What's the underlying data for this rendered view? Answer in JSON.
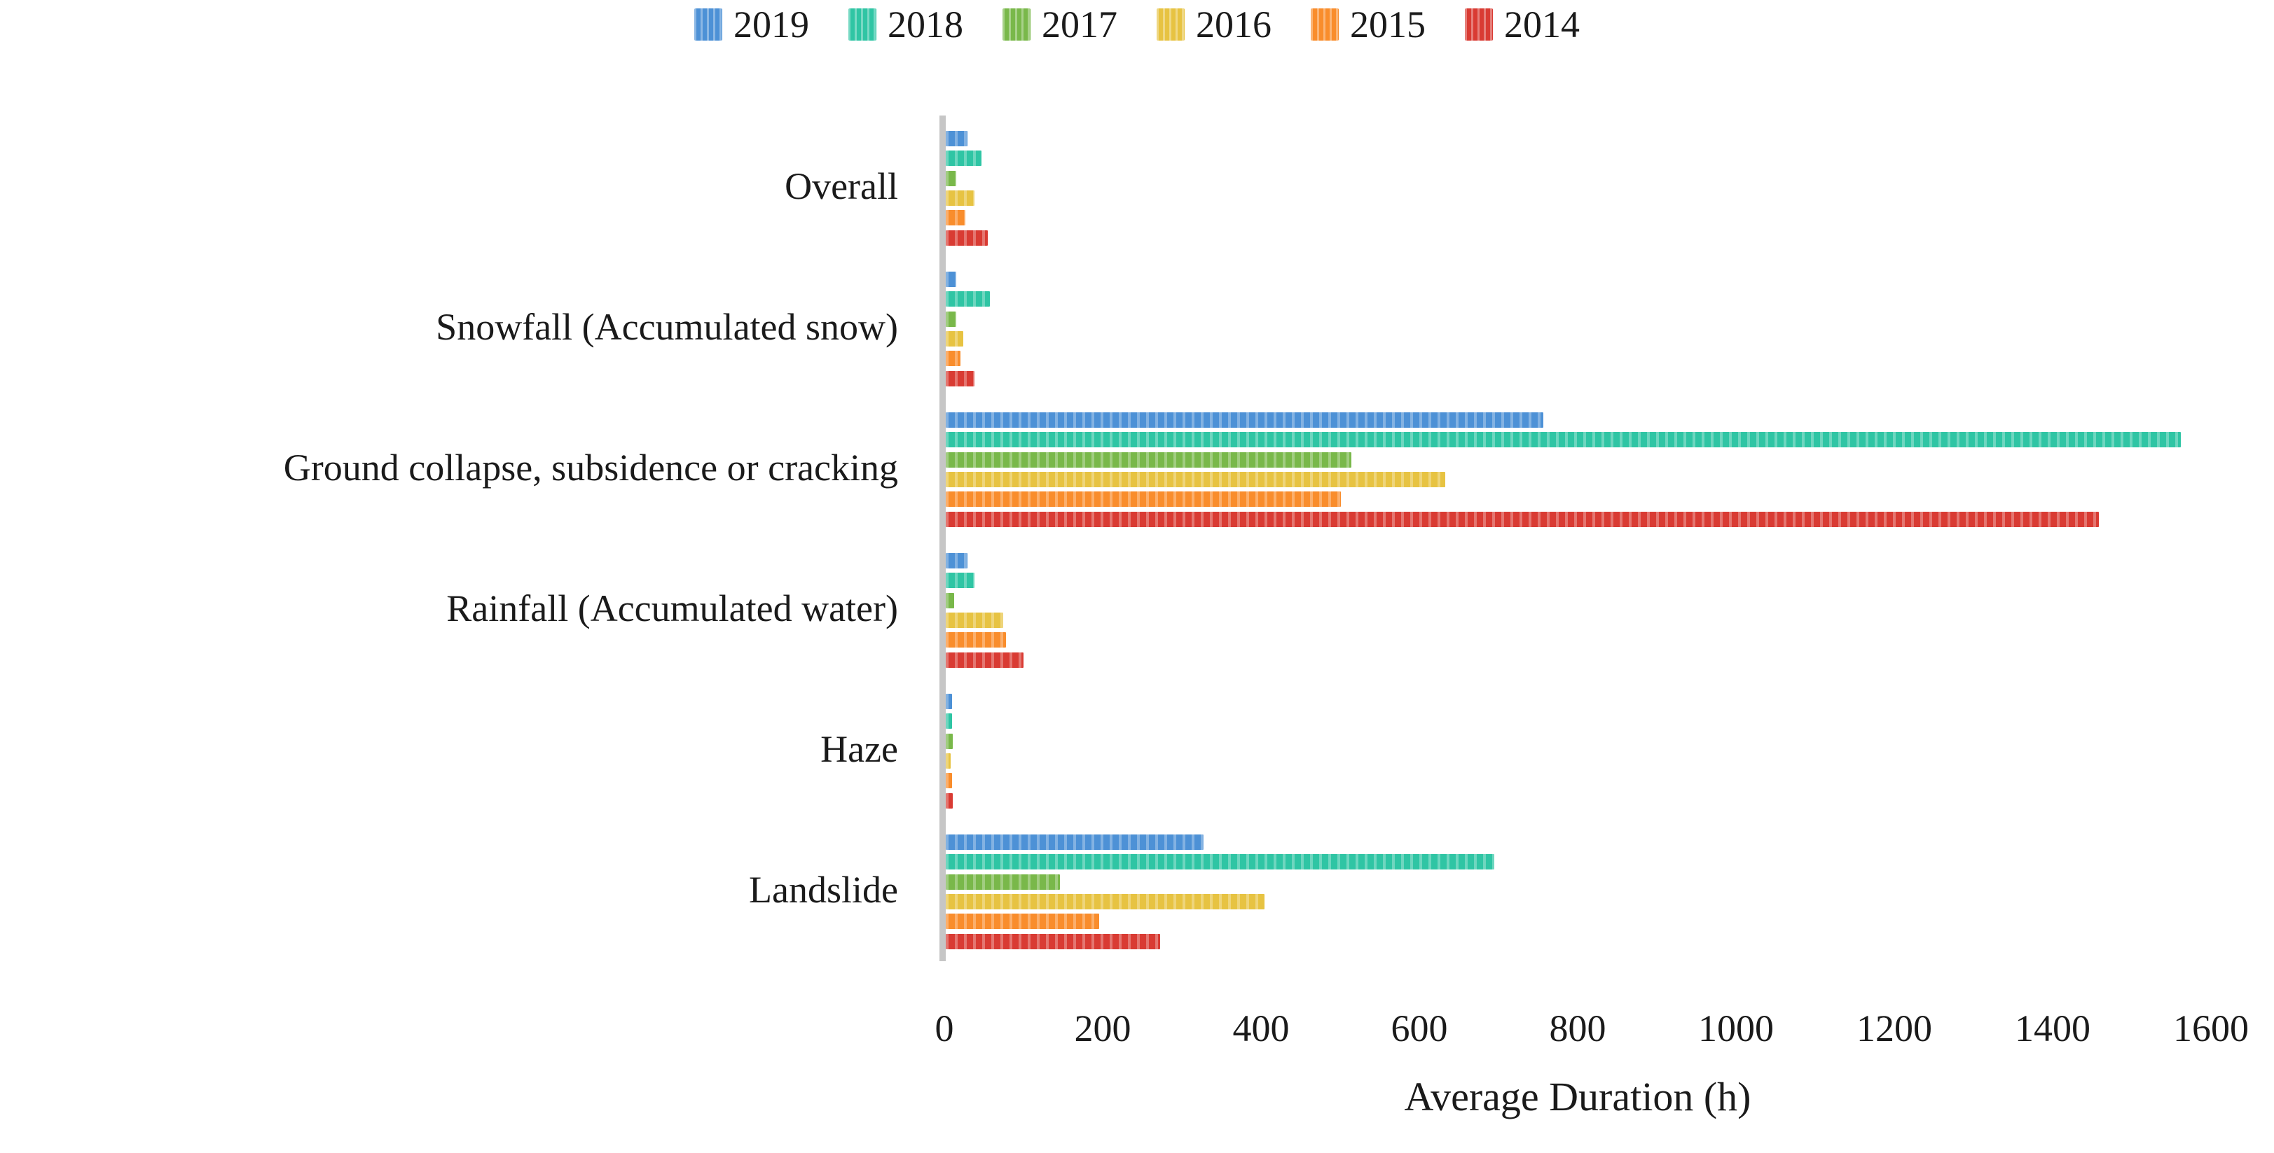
{
  "chart_data": {
    "type": "bar",
    "orientation": "horizontal",
    "title": "",
    "xlabel": "Average Duration (h)",
    "ylabel": "",
    "xlim": [
      0,
      1600
    ],
    "x_ticks": [
      0,
      200,
      400,
      600,
      800,
      1000,
      1200,
      1400,
      1600
    ],
    "grid": false,
    "legend_position": "top",
    "categories": [
      "Overall",
      "Snowfall (Accumulated snow)",
      "Ground collapse, subsidence or cracking",
      "Rainfall (Accumulated water)",
      "Haze",
      "Landslide"
    ],
    "series": [
      {
        "name": "2019",
        "color": "#4d91d6",
        "values": [
          27,
          13,
          755,
          27,
          8,
          326
        ]
      },
      {
        "name": "2018",
        "color": "#2fc5a4",
        "values": [
          45,
          56,
          1560,
          36,
          8,
          693
        ]
      },
      {
        "name": "2017",
        "color": "#79b84a",
        "values": [
          13,
          13,
          512,
          11,
          9,
          144
        ]
      },
      {
        "name": "2016",
        "color": "#e7c342",
        "values": [
          36,
          22,
          631,
          73,
          6,
          403
        ]
      },
      {
        "name": "2015",
        "color": "#f98d2c",
        "values": [
          25,
          19,
          499,
          76,
          8,
          194
        ]
      },
      {
        "name": "2014",
        "color": "#d93b33",
        "values": [
          53,
          36,
          1457,
          98,
          9,
          271
        ]
      }
    ],
    "axis_color": "#c6c6c6",
    "text_color": "#1a1a1a"
  },
  "layout_note": ""
}
